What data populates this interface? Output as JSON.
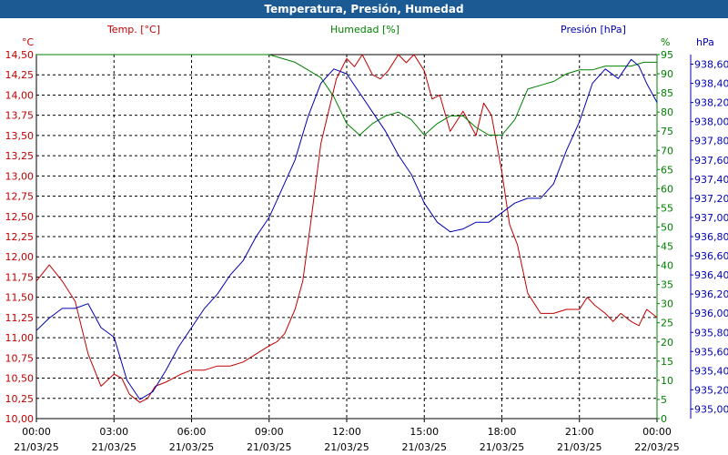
{
  "title": "Temperatura, Presión, Humedad",
  "colors": {
    "title_bg": "#1c5a94",
    "temp": "#c00000",
    "hum": "#008000",
    "pres": "#0000b4",
    "grid": "#000000"
  },
  "chart_data": {
    "type": "line",
    "title": "Temperatura, Presión, Humedad",
    "grid": true,
    "x_tick_labels": [
      [
        "00:00",
        "21/03/25"
      ],
      [
        "03:00",
        "21/03/25"
      ],
      [
        "06:00",
        "21/03/25"
      ],
      [
        "09:00",
        "21/03/25"
      ],
      [
        "12:00",
        "21/03/25"
      ],
      [
        "15:00",
        "21/03/25"
      ],
      [
        "18:00",
        "21/03/25"
      ],
      [
        "21:00",
        "21/03/25"
      ],
      [
        "00:00",
        "22/03/25"
      ]
    ],
    "axes": {
      "temp": {
        "label": "Temp. [°C]",
        "unit": "°C",
        "range": [
          10.0,
          14.5
        ],
        "ticks": [
          "10,00",
          "10,25",
          "10,50",
          "10,75",
          "11,00",
          "11,25",
          "11,50",
          "11,75",
          "12,00",
          "12,25",
          "12,50",
          "12,75",
          "13,00",
          "13,25",
          "13,50",
          "13,75",
          "14,00",
          "14,25",
          "14,50"
        ]
      },
      "hum": {
        "label": "Humedad [%]",
        "unit": "%",
        "range": [
          0,
          95
        ],
        "ticks": [
          "0",
          "5",
          "10",
          "15",
          "20",
          "25",
          "30",
          "35",
          "40",
          "45",
          "50",
          "55",
          "60",
          "65",
          "70",
          "75",
          "80",
          "85",
          "90",
          "95"
        ]
      },
      "pres": {
        "label": "Presión [hPa]",
        "unit": "hPa",
        "range": [
          934.9,
          938.7
        ],
        "ticks": [
          "935,00",
          "935,20",
          "935,40",
          "935,60",
          "935,80",
          "936,00",
          "936,20",
          "936,40",
          "936,60",
          "936,80",
          "937,00",
          "937,20",
          "937,40",
          "937,60",
          "937,80",
          "938,00",
          "938,20",
          "938,40",
          "938,60"
        ]
      }
    },
    "x_range_hours": [
      0,
      24
    ],
    "series": [
      {
        "name": "Temp. [°C]",
        "axis": "temp",
        "x": [
          0,
          0.5,
          1,
          1.5,
          2,
          2.5,
          3,
          3.3,
          3.6,
          4,
          4.3,
          4.6,
          5,
          5.3,
          5.6,
          6,
          6.5,
          7,
          7.5,
          8,
          8.5,
          9,
          9.3,
          9.6,
          10,
          10.3,
          10.6,
          11,
          11.3,
          11.6,
          12,
          12.3,
          12.6,
          13,
          13.3,
          13.6,
          14,
          14.3,
          14.6,
          15,
          15.3,
          15.6,
          16,
          16.5,
          17,
          17.3,
          17.6,
          18,
          18.3,
          18.6,
          19,
          19.5,
          20,
          20.5,
          21,
          21.3,
          21.6,
          22,
          22.3,
          22.6,
          23,
          23.3,
          23.6,
          24
        ],
        "y": [
          11.7,
          11.9,
          11.7,
          11.45,
          10.8,
          10.4,
          10.55,
          10.5,
          10.3,
          10.2,
          10.25,
          10.4,
          10.45,
          10.5,
          10.55,
          10.6,
          10.6,
          10.65,
          10.65,
          10.7,
          10.8,
          10.9,
          10.95,
          11.05,
          11.35,
          11.7,
          12.4,
          13.4,
          13.8,
          14.2,
          14.45,
          14.35,
          14.5,
          14.25,
          14.2,
          14.3,
          14.5,
          14.4,
          14.5,
          14.3,
          13.95,
          14.0,
          13.55,
          13.8,
          13.5,
          13.9,
          13.75,
          13.05,
          12.4,
          12.15,
          11.55,
          11.3,
          11.3,
          11.35,
          11.35,
          11.5,
          11.4,
          11.3,
          11.2,
          11.3,
          11.2,
          11.15,
          11.35,
          11.25
        ]
      },
      {
        "name": "Humedad [%]",
        "axis": "hum",
        "x": [
          0,
          3,
          6,
          9,
          10,
          11,
          11.5,
          12,
          12.5,
          13,
          13.5,
          14,
          14.5,
          15,
          15.5,
          16,
          16.5,
          17,
          17.5,
          18,
          18.5,
          19,
          19.5,
          20,
          20.5,
          21,
          21.5,
          22,
          22.5,
          23,
          23.5,
          24
        ],
        "y": [
          95,
          95,
          95,
          95,
          93,
          89,
          84,
          77,
          74,
          77,
          79,
          80,
          78,
          74,
          77,
          79,
          79,
          76,
          74,
          74,
          78,
          86,
          87,
          88,
          90,
          91,
          91,
          92,
          92,
          92,
          93,
          93
        ]
      },
      {
        "name": "Presión [hPa]",
        "axis": "pres",
        "x": [
          0,
          0.5,
          1,
          1.5,
          2,
          2.5,
          3,
          3.5,
          4,
          4.5,
          5,
          5.5,
          6,
          6.5,
          7,
          7.5,
          8,
          8.5,
          9,
          9.5,
          10,
          10.5,
          11,
          11.5,
          12,
          12.5,
          13,
          13.5,
          14,
          14.5,
          15,
          15.5,
          16,
          16.5,
          17,
          17.5,
          18,
          18.5,
          19,
          19.5,
          20,
          20.5,
          21,
          21.5,
          22,
          22.5,
          23,
          23.3,
          23.6,
          24
        ],
        "y": [
          935.82,
          935.95,
          936.05,
          936.05,
          936.1,
          935.85,
          935.75,
          935.3,
          935.1,
          935.18,
          935.4,
          935.65,
          935.85,
          936.05,
          936.2,
          936.4,
          936.55,
          936.8,
          937.0,
          937.3,
          937.6,
          938.05,
          938.4,
          938.55,
          938.5,
          938.3,
          938.1,
          937.9,
          937.65,
          937.45,
          937.15,
          936.95,
          936.85,
          936.88,
          936.95,
          936.95,
          937.05,
          937.15,
          937.2,
          937.2,
          937.35,
          937.7,
          938.0,
          938.4,
          938.55,
          938.45,
          938.65,
          938.58,
          938.4,
          938.2
        ]
      }
    ]
  }
}
